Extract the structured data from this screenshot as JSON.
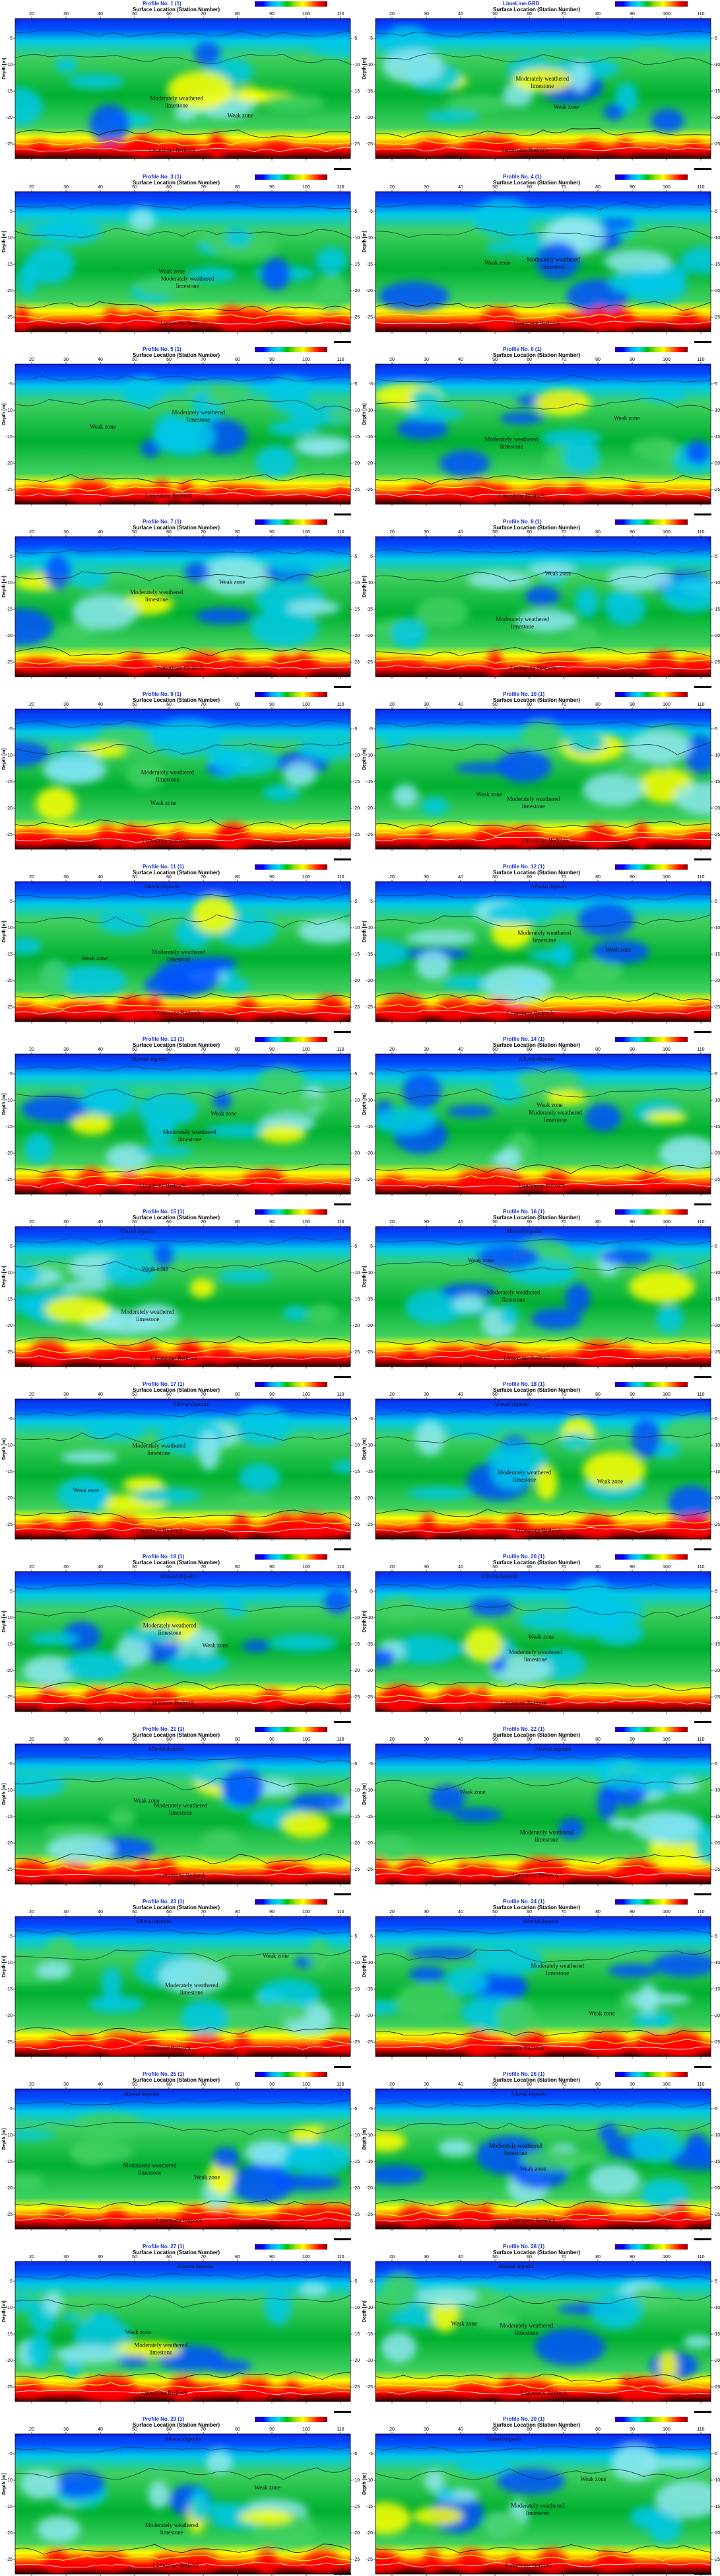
{
  "common": {
    "x_axis_label": "Surface Location (Station Number)",
    "y_axis_label": "Depth [m]",
    "x_ticks": [
      "20",
      "30",
      "40",
      "50",
      "60",
      "70",
      "80",
      "90",
      "100",
      "110"
    ],
    "y_ticks": [
      "-5",
      "-10",
      "-15",
      "-20",
      "-25"
    ],
    "annotations": {
      "mod": "Moderately weathered",
      "lime": "limestone",
      "weak": "Weak zone",
      "bed": "Limestone Bedrock",
      "alluv": "Alluvial deposits"
    }
  },
  "panels": [
    {
      "title": "Profile No. 1 (1)",
      "layout": "a"
    },
    {
      "title": "LimeLine-GRD",
      "layout": "b"
    },
    {
      "title": "Profile No. 3 (1)",
      "layout": "c"
    },
    {
      "title": "Profile No. 4 (1)",
      "layout": "d"
    },
    {
      "title": "Profile No. 5 (1)",
      "layout": "e"
    },
    {
      "title": "Profile No. 6 (1)",
      "layout": "f"
    },
    {
      "title": "Profile No. 7 (1)",
      "layout": "g"
    },
    {
      "title": "Profile No. 8 (1)",
      "layout": "h"
    },
    {
      "title": "Profile No. 9 (1)",
      "layout": "i"
    },
    {
      "title": "Profile No. 10 (1)",
      "layout": "j"
    },
    {
      "title": "Profile No. 11 (1)",
      "layout": "k"
    },
    {
      "title": "Profile No. 12 (1)",
      "layout": "l"
    },
    {
      "title": "Profile No. 13 (1)",
      "layout": "m"
    },
    {
      "title": "Profile No. 14 (1)",
      "layout": "n"
    },
    {
      "title": "Profile No. 15 (1)",
      "layout": "o"
    },
    {
      "title": "Profile No. 16 (1)",
      "layout": "p"
    },
    {
      "title": "Profile No. 17 (1)",
      "layout": "q"
    },
    {
      "title": "Profile No. 18 (1)",
      "layout": "r"
    },
    {
      "title": "Profile No. 19 (1)",
      "layout": "s"
    },
    {
      "title": "Profile No. 20 (1)",
      "layout": "t"
    },
    {
      "title": "Profile No. 21 (1)",
      "layout": "u"
    },
    {
      "title": "Profile No. 22 (1)",
      "layout": "v"
    },
    {
      "title": "Profile No. 23 (1)",
      "layout": "w"
    },
    {
      "title": "Profile No. 24 (1)",
      "layout": "x"
    },
    {
      "title": "Profile No. 25 (1)",
      "layout": "y"
    },
    {
      "title": "Profile No. 26 (1)",
      "layout": "z"
    },
    {
      "title": "Profile No. 27 (1)",
      "layout": "a2"
    },
    {
      "title": "Profile No. 28 (1)",
      "layout": "b2"
    },
    {
      "title": "Profile No. 29 (1)",
      "layout": "c2"
    },
    {
      "title": "Profile No. 30 (1)",
      "layout": "d2"
    }
  ],
  "colors": {
    "deep_blue": "#1a00c8",
    "blue": "#0050ff",
    "cyan": "#00c8e8",
    "light_cyan": "#8ee8f0",
    "green": "#00b030",
    "light_green": "#40d060",
    "yellow": "#ffff00",
    "orange": "#ff8000",
    "red": "#ff0000",
    "dark": "#200000",
    "title_blue": "#1a2fd0"
  }
}
